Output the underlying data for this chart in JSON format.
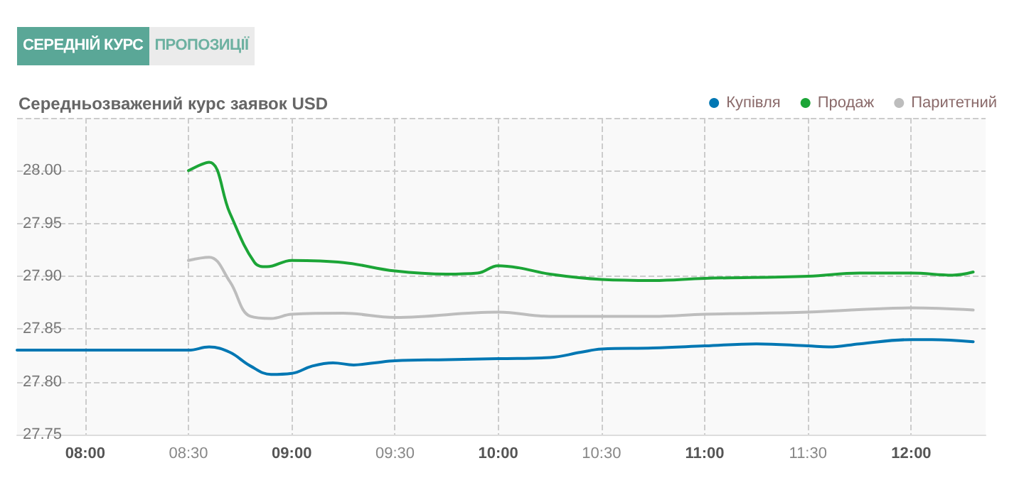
{
  "chart_data": {
    "type": "line",
    "title": "Середньозважений курс заявок USD",
    "annotations": [
      "СЕРЕДНІЙ КУРС",
      "ПРОПОЗИЦІЇ"
    ],
    "xlim": [
      7.67,
      12.36
    ],
    "xticks": [
      {
        "value": 8,
        "label": "08:00"
      },
      {
        "value": 8.5,
        "label": "08:30"
      },
      {
        "value": 9,
        "label": "09:00"
      },
      {
        "value": 9.5,
        "label": "09:30"
      },
      {
        "value": 10,
        "label": "10:00"
      },
      {
        "value": 10.5,
        "label": "10:30"
      },
      {
        "value": 11,
        "label": "11:00"
      },
      {
        "value": 11.5,
        "label": "11:30"
      },
      {
        "value": 12,
        "label": "12:00"
      }
    ],
    "ylim": [
      27.75,
      28.05
    ],
    "yticks": [
      {
        "value": 27.75,
        "label": "27.75"
      },
      {
        "value": 27.8,
        "label": "27.80"
      },
      {
        "value": 27.85,
        "label": "27.85"
      },
      {
        "value": 27.9,
        "label": "27.90"
      },
      {
        "value": 27.95,
        "label": "27.95"
      },
      {
        "value": 28,
        "label": "28.00"
      },
      {
        "value": 28.05,
        "label": null
      }
    ],
    "grid": true,
    "legend": "top right",
    "marker": "none",
    "line_style": "solid",
    "series": [
      {
        "name": "Купівля",
        "color": "#0077b3",
        "x": [
          7.67,
          8.5,
          8.6,
          8.7,
          8.8,
          8.9,
          9.0,
          9.1,
          9.2,
          9.3,
          9.4,
          9.5,
          9.75,
          10.0,
          10.25,
          10.4,
          10.5,
          10.75,
          11.0,
          11.25,
          11.5,
          11.6,
          11.75,
          12.0,
          12.1,
          12.3
        ],
        "values": [
          27.83,
          27.83,
          27.833,
          27.828,
          27.815,
          27.807,
          27.808,
          27.815,
          27.818,
          27.816,
          27.818,
          27.82,
          27.821,
          27.822,
          27.823,
          27.828,
          27.831,
          27.832,
          27.834,
          27.836,
          27.834,
          27.833,
          27.836,
          27.84,
          27.84,
          27.838
        ]
      },
      {
        "name": "Продаж",
        "color": "#1ca537",
        "x": [
          8.5,
          8.6,
          8.7,
          8.82,
          8.88,
          9.0,
          9.25,
          9.5,
          9.75,
          9.9,
          10.0,
          10.1,
          10.25,
          10.5,
          10.75,
          11.0,
          11.5,
          11.75,
          12.0,
          12.2,
          12.3
        ],
        "values": [
          28.0,
          28.008,
          27.96,
          27.913,
          27.909,
          27.915,
          27.913,
          27.905,
          27.902,
          27.903,
          27.91,
          27.908,
          27.902,
          27.897,
          27.896,
          27.898,
          27.9,
          27.903,
          27.903,
          27.901,
          27.904
        ]
      },
      {
        "name": "Паритетний",
        "color": "#bdbdbd",
        "x": [
          8.5,
          8.6,
          8.7,
          8.8,
          8.9,
          9.0,
          9.25,
          9.5,
          10.0,
          10.25,
          10.75,
          11.0,
          11.5,
          12.0,
          12.3
        ],
        "values": [
          27.915,
          27.918,
          27.895,
          27.862,
          27.86,
          27.864,
          27.865,
          27.861,
          27.866,
          27.862,
          27.862,
          27.864,
          27.866,
          27.87,
          27.868
        ]
      }
    ]
  }
}
